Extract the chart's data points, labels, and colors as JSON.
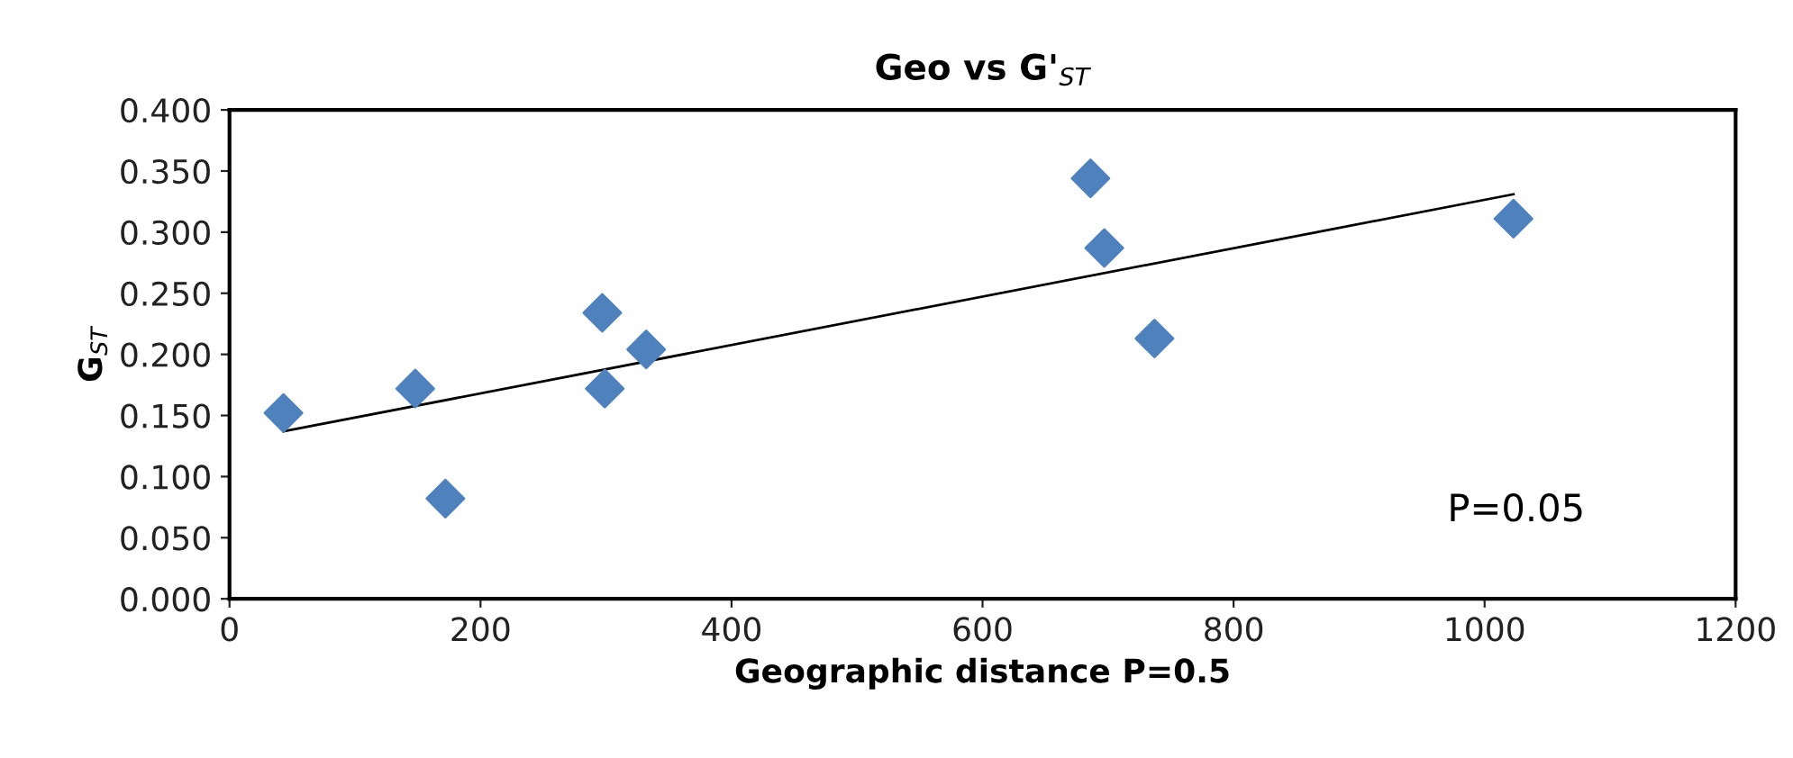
{
  "chart_data": {
    "type": "scatter",
    "title": "Geo vs G'$_{ST}$",
    "xlabel": "Geographic distance P=0.5",
    "ylabel": "G$_{ST}$",
    "series": [
      {
        "color": "#4f81bd",
        "marker": "diamond",
        "x": [
          43,
          148,
          172,
          297,
          299,
          332,
          686,
          697,
          737,
          1023
        ],
        "values": [
          0.152,
          0.172,
          0.082,
          0.234,
          0.172,
          0.204,
          0.344,
          0.287,
          0.213,
          0.311
        ]
      },
      {
        "type": "line",
        "color": "#000000",
        "marker": "none",
        "x": [
          43,
          1023
        ],
        "values": [
          0.137,
          0.331
        ]
      }
    ],
    "annotations": [
      {
        "text": "P=0.05"
      }
    ],
    "xlim": [
      0,
      1200
    ],
    "xticks": [
      0,
      200,
      400,
      600,
      800,
      1000,
      1200
    ],
    "ylim": [
      0,
      0.4
    ],
    "yticks": [
      {
        "value": 0,
        "label": "0.000"
      },
      {
        "value": 0.05,
        "label": "0.050"
      },
      {
        "value": 0.1,
        "label": "0.100"
      },
      {
        "value": 0.15,
        "label": "0.150"
      },
      {
        "value": 0.2,
        "label": "0.200"
      },
      {
        "value": 0.25,
        "label": "0.250"
      },
      {
        "value": 0.3,
        "label": "0.300"
      },
      {
        "value": 0.35,
        "label": "0.350"
      },
      {
        "value": 0.4,
        "label": "0.400"
      }
    ],
    "grid": false,
    "legend": false
  }
}
